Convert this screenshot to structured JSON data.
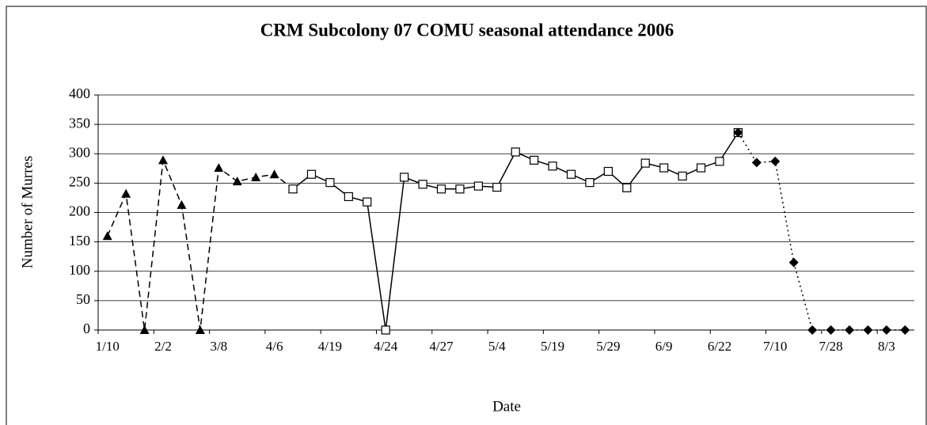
{
  "chart_data": {
    "type": "line",
    "title": "CRM Subcolony 07 COMU seasonal attendance 2006",
    "x_label": "Date",
    "y_label": "Number of Murres",
    "categories": [
      "1/10",
      null,
      null,
      "2/2",
      null,
      null,
      "3/8",
      null,
      null,
      "4/6",
      null,
      null,
      "4/19",
      null,
      null,
      "4/24",
      null,
      null,
      "4/27",
      null,
      null,
      "5/4",
      null,
      null,
      "5/19",
      null,
      null,
      "5/29",
      null,
      null,
      "6/9",
      null,
      null,
      "6/22",
      null,
      null,
      "7/10",
      null,
      null,
      "7/28",
      null,
      null,
      "8/3",
      null
    ],
    "series": [
      {
        "color": "#000000",
        "marker": "triangle",
        "line_style": "dashed",
        "values": [
          160,
          232,
          0,
          289,
          213,
          0,
          276,
          253,
          260,
          265,
          240,
          null,
          null,
          null,
          null,
          null,
          null,
          null,
          null,
          null,
          null,
          null,
          null,
          null,
          null,
          null,
          null,
          null,
          null,
          null,
          null,
          null,
          null,
          null,
          null,
          null,
          null,
          null,
          null,
          null,
          null,
          null,
          null,
          null
        ]
      },
      {
        "color": "#000000",
        "marker": "square",
        "line_style": "solid",
        "values": [
          null,
          null,
          null,
          null,
          null,
          null,
          null,
          null,
          null,
          null,
          240,
          265,
          251,
          227,
          218,
          0,
          260,
          248,
          240,
          240,
          245,
          243,
          303,
          289,
          279,
          265,
          251,
          270,
          242,
          284,
          276,
          262,
          276,
          287,
          336,
          null,
          null,
          null,
          null,
          null,
          null,
          null,
          null,
          null
        ]
      },
      {
        "color": "#000000",
        "marker": "diamond",
        "line_style": "dotted",
        "values": [
          null,
          null,
          null,
          null,
          null,
          null,
          null,
          null,
          null,
          null,
          null,
          null,
          null,
          null,
          null,
          null,
          null,
          null,
          null,
          null,
          null,
          null,
          null,
          null,
          null,
          null,
          null,
          null,
          null,
          null,
          null,
          null,
          null,
          null,
          336,
          285,
          287,
          115,
          0,
          0,
          0,
          0,
          0,
          0
        ]
      }
    ],
    "ylim": [
      0,
      400
    ],
    "yticks": [
      0,
      50,
      100,
      150,
      200,
      250,
      300,
      350,
      400
    ],
    "grid": true
  }
}
